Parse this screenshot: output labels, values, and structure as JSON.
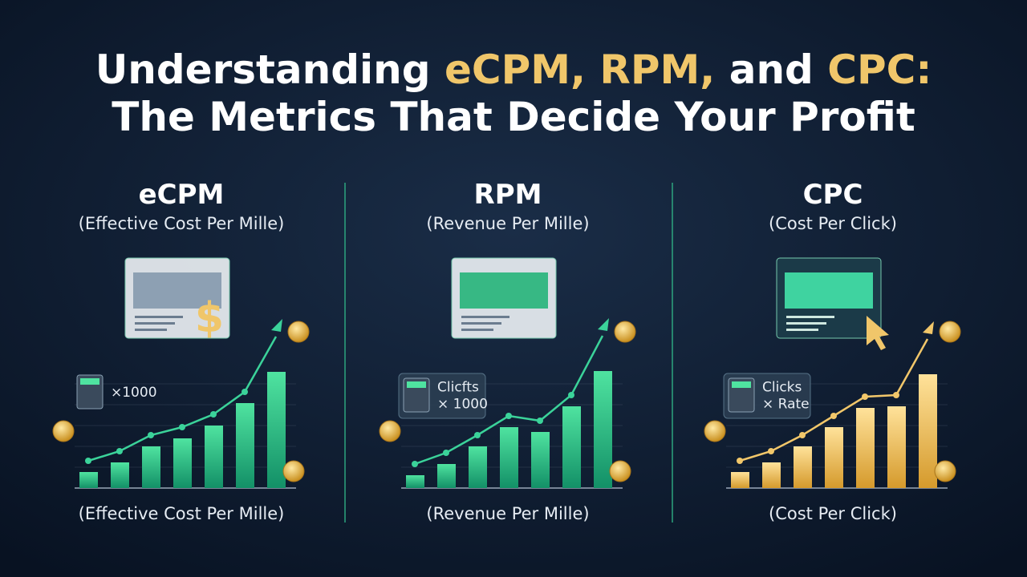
{
  "title": {
    "parts": [
      "Understanding",
      "eCPM, RPM,",
      "and",
      "CPC:"
    ],
    "line2": "The Metrics That Decide Your Profit"
  },
  "panels": [
    {
      "heading": "eCPM",
      "subtitle": "(Effective Cost Per Mille)",
      "formula": [
        "×1000"
      ],
      "footer": "(Effective Cost Per Mille)"
    },
    {
      "heading": "RPM",
      "subtitle": "(Revenue Per Mille)",
      "formula": [
        "Clicfts",
        "× 1000"
      ],
      "footer": "(Revenue Per Mille)"
    },
    {
      "heading": "CPC",
      "subtitle": "(Cost Per Click)",
      "formula": [
        "Clicks",
        "× Rate"
      ],
      "footer": "(Cost Per Click)"
    }
  ]
}
